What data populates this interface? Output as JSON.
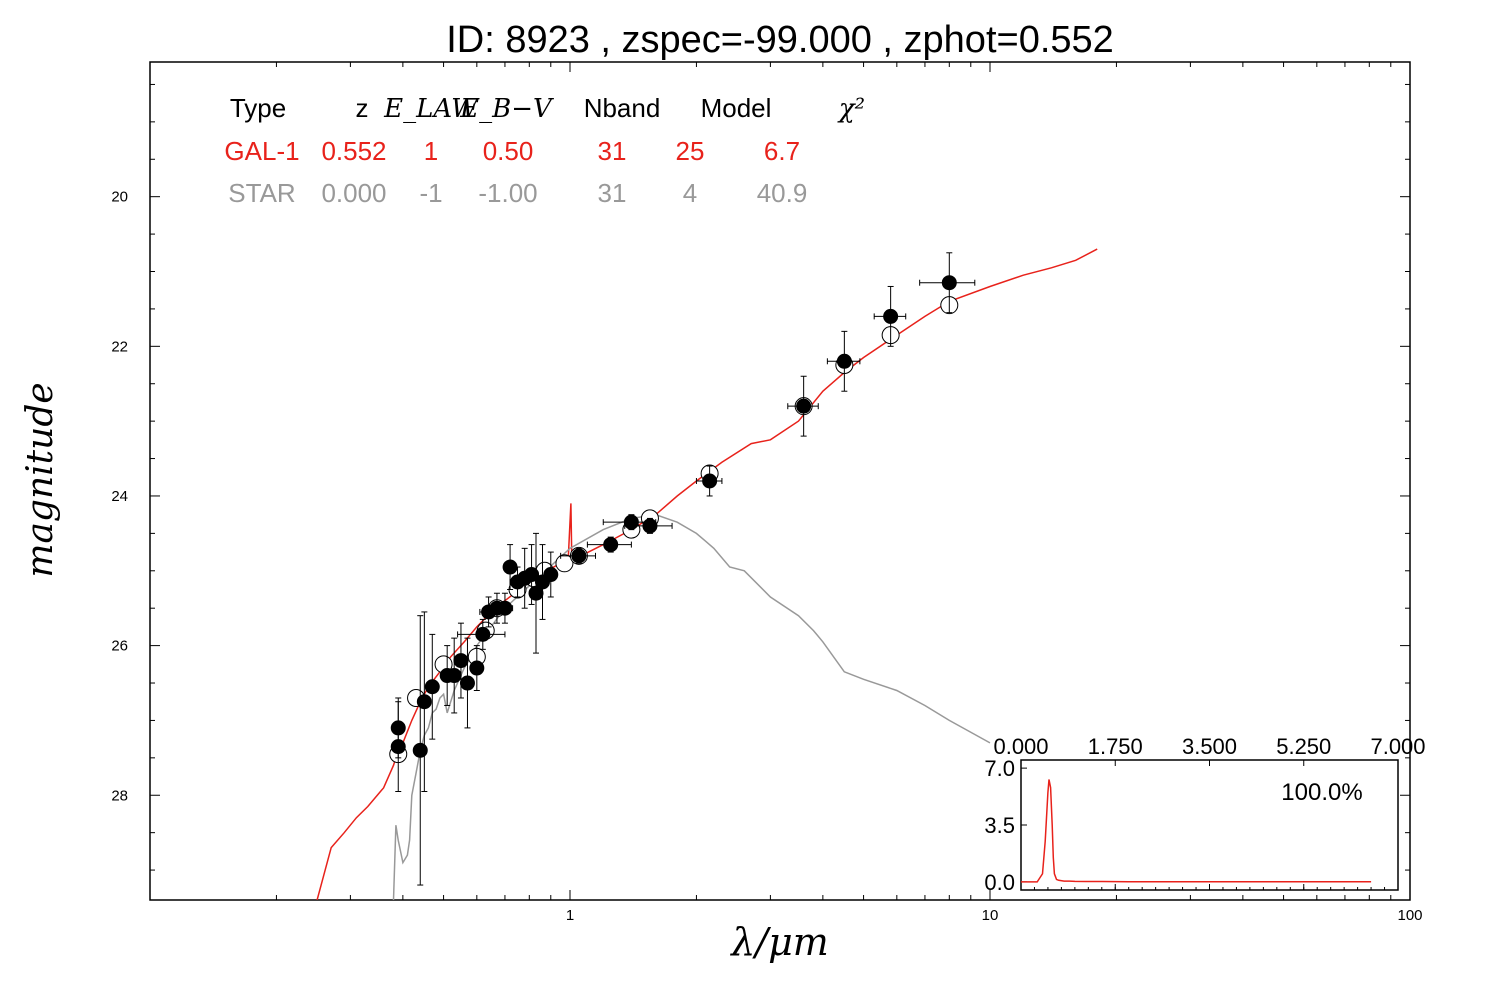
{
  "chart_data": {
    "type": "scatter",
    "title": "ID:  8923  , zspec=-99.000 , zphot=0.552",
    "xlabel": "λ/μm",
    "ylabel": "magnitude",
    "x_scale": "log",
    "xlim": [
      0.1,
      100
    ],
    "ylim": [
      29.4,
      18.2
    ],
    "x_ticks": [
      1,
      10,
      100
    ],
    "x_tick_labels": [
      "1",
      "10",
      "100"
    ],
    "y_ticks": [
      20,
      22,
      24,
      26,
      28
    ],
    "y_tick_labels": [
      "20",
      "22",
      "24",
      "26",
      "28"
    ],
    "legend_table": {
      "headers": [
        "Type",
        "z",
        "E_LAW",
        "E_B−V",
        "Nband",
        "Model",
        "χ²"
      ],
      "rows": [
        {
          "color": "#e8221b",
          "cells": [
            "GAL-1",
            "0.552",
            "1",
            "0.50",
            "31",
            "25",
            "6.7"
          ]
        },
        {
          "color": "#999999",
          "cells": [
            "STAR",
            "0.000",
            "-1",
            "-1.00",
            "31",
            "4",
            "40.9"
          ]
        }
      ]
    },
    "series": [
      {
        "name": "GAL-1",
        "kind": "line",
        "color": "#e8221b",
        "x": [
          0.25,
          0.27,
          0.29,
          0.31,
          0.33,
          0.36,
          0.38,
          0.39,
          0.4,
          0.42,
          0.44,
          0.46,
          0.49,
          0.52,
          0.56,
          0.6,
          0.65,
          0.7,
          0.75,
          0.8,
          0.88,
          0.95,
          0.99,
          1.005,
          1.01,
          1.02,
          1.08,
          1.2,
          1.4,
          1.6,
          1.8,
          2.0,
          2.3,
          2.7,
          3.0,
          3.5,
          4.0,
          4.5,
          5.0,
          6.0,
          7.0,
          8.0,
          10,
          12,
          14,
          16,
          18
        ],
        "y": [
          29.4,
          28.7,
          28.5,
          28.3,
          28.15,
          27.9,
          27.6,
          27.4,
          27.3,
          27.0,
          26.75,
          26.55,
          26.35,
          26.15,
          25.95,
          25.75,
          25.55,
          25.4,
          25.27,
          25.15,
          25.0,
          24.9,
          24.85,
          24.1,
          24.85,
          24.82,
          24.78,
          24.65,
          24.45,
          24.25,
          24.0,
          23.8,
          23.55,
          23.3,
          23.25,
          23.0,
          22.6,
          22.35,
          22.15,
          21.85,
          21.6,
          21.4,
          21.2,
          21.05,
          20.95,
          20.85,
          20.7
        ]
      },
      {
        "name": "STAR",
        "kind": "line",
        "color": "#999999",
        "x": [
          0.38,
          0.385,
          0.39,
          0.4,
          0.41,
          0.415,
          0.42,
          0.43,
          0.44,
          0.45,
          0.46,
          0.47,
          0.48,
          0.49,
          0.5,
          0.51,
          0.53,
          0.56,
          0.6,
          0.7,
          0.8,
          1.0,
          1.2,
          1.4,
          1.6,
          1.8,
          2.0,
          2.1,
          2.2,
          2.4,
          2.6,
          3.0,
          3.5,
          3.8,
          4.0,
          4.5,
          5.0,
          6.0,
          7.0,
          8.0,
          10
        ],
        "y": [
          29.4,
          28.4,
          28.6,
          28.9,
          28.8,
          28.6,
          28.0,
          27.7,
          27.4,
          27.2,
          27.1,
          26.9,
          26.85,
          26.7,
          26.65,
          26.9,
          26.6,
          26.3,
          26.0,
          25.5,
          25.2,
          24.7,
          24.45,
          24.3,
          24.25,
          24.35,
          24.5,
          24.6,
          24.7,
          24.95,
          25.0,
          25.35,
          25.6,
          25.8,
          25.95,
          26.35,
          26.45,
          26.6,
          26.8,
          27.0,
          27.3
        ]
      },
      {
        "name": "observed",
        "kind": "points",
        "marker": "filled",
        "points": [
          {
            "x": 0.39,
            "y": 27.1,
            "yerr": 0.4,
            "xerr": 0.0
          },
          {
            "x": 0.39,
            "y": 27.35,
            "yerr": 0.6,
            "xerr": 0.0
          },
          {
            "x": 0.44,
            "y": 27.4,
            "yerr": 1.8,
            "xerr": 0.0
          },
          {
            "x": 0.45,
            "y": 26.75,
            "yerr": 1.2,
            "xerr": 0.0
          },
          {
            "x": 0.47,
            "y": 26.55,
            "yerr": 0.7,
            "xerr": 0.0
          },
          {
            "x": 0.51,
            "y": 26.4,
            "yerr": 0.4,
            "xerr": 0.0
          },
          {
            "x": 0.53,
            "y": 26.4,
            "yerr": 0.5,
            "xerr": 0.0
          },
          {
            "x": 0.55,
            "y": 26.2,
            "yerr": 0.5,
            "xerr": 0.0
          },
          {
            "x": 0.57,
            "y": 26.5,
            "yerr": 0.6,
            "xerr": 0.0
          },
          {
            "x": 0.6,
            "y": 26.3,
            "yerr": 0.3,
            "xerr": 0.0
          },
          {
            "x": 0.62,
            "y": 25.85,
            "yerr": 0.2,
            "xerr": 0.08
          },
          {
            "x": 0.64,
            "y": 25.55,
            "yerr": 0.2,
            "xerr": 0.03
          },
          {
            "x": 0.67,
            "y": 25.5,
            "yerr": 0.2,
            "xerr": 0.03
          },
          {
            "x": 0.7,
            "y": 25.5,
            "yerr": 0.2,
            "xerr": 0.03
          },
          {
            "x": 0.72,
            "y": 24.95,
            "yerr": 0.3,
            "xerr": 0.0
          },
          {
            "x": 0.75,
            "y": 25.15,
            "yerr": 0.2,
            "xerr": 0.03
          },
          {
            "x": 0.78,
            "y": 25.1,
            "yerr": 0.4,
            "xerr": 0.03
          },
          {
            "x": 0.81,
            "y": 25.05,
            "yerr": 0.4,
            "xerr": 0.03
          },
          {
            "x": 0.83,
            "y": 25.3,
            "yerr": 0.8,
            "xerr": 0.0
          },
          {
            "x": 0.86,
            "y": 25.15,
            "yerr": 0.5,
            "xerr": 0.02
          },
          {
            "x": 0.9,
            "y": 25.05,
            "yerr": 0.3,
            "xerr": 0.03
          },
          {
            "x": 1.05,
            "y": 24.8,
            "yerr": 0.1,
            "xerr": 0.1
          },
          {
            "x": 1.25,
            "y": 24.65,
            "yerr": 0.1,
            "xerr": 0.15
          },
          {
            "x": 1.4,
            "y": 24.35,
            "yerr": 0.1,
            "xerr": 0.2
          },
          {
            "x": 1.55,
            "y": 24.4,
            "yerr": 0.1,
            "xerr": 0.2
          },
          {
            "x": 2.15,
            "y": 23.8,
            "yerr": 0.2,
            "xerr": 0.15
          },
          {
            "x": 3.6,
            "y": 22.8,
            "yerr": 0.4,
            "xerr": 0.3
          },
          {
            "x": 4.5,
            "y": 22.2,
            "yerr": 0.4,
            "xerr": 0.4
          },
          {
            "x": 5.8,
            "y": 21.6,
            "yerr": 0.4,
            "xerr": 0.5
          },
          {
            "x": 8.0,
            "y": 21.15,
            "yerr": 0.4,
            "xerr": 1.2
          }
        ]
      },
      {
        "name": "model",
        "kind": "points",
        "marker": "open",
        "points": [
          {
            "x": 0.39,
            "y": 27.45
          },
          {
            "x": 0.43,
            "y": 26.7
          },
          {
            "x": 0.5,
            "y": 26.25
          },
          {
            "x": 0.6,
            "y": 26.15
          },
          {
            "x": 0.63,
            "y": 25.8
          },
          {
            "x": 0.67,
            "y": 25.5
          },
          {
            "x": 0.75,
            "y": 25.25
          },
          {
            "x": 0.82,
            "y": 25.1
          },
          {
            "x": 0.87,
            "y": 25.0
          },
          {
            "x": 0.97,
            "y": 24.9
          },
          {
            "x": 1.05,
            "y": 24.8
          },
          {
            "x": 1.4,
            "y": 24.45
          },
          {
            "x": 1.55,
            "y": 24.3
          },
          {
            "x": 2.15,
            "y": 23.7
          },
          {
            "x": 3.6,
            "y": 22.8
          },
          {
            "x": 4.5,
            "y": 22.25
          },
          {
            "x": 5.8,
            "y": 21.85
          },
          {
            "x": 8.0,
            "y": 21.45
          }
        ]
      }
    ],
    "inset": {
      "type": "line",
      "label": "100.0%",
      "xlim": [
        0.0,
        7.0
      ],
      "ylim": [
        -0.5,
        7.5
      ],
      "x_ticks": [
        0.0,
        1.75,
        3.5,
        5.25,
        7.0
      ],
      "x_tick_labels": [
        "0.000",
        "1.750",
        "3.500",
        "5.250",
        "7.000"
      ],
      "y_ticks": [
        0.0,
        3.5,
        7.0
      ],
      "y_tick_labels": [
        "0.0",
        "3.5",
        "7.0"
      ],
      "color": "#e8221b",
      "x": [
        0.0,
        0.3,
        0.4,
        0.45,
        0.5,
        0.52,
        0.55,
        0.58,
        0.6,
        0.62,
        0.66,
        0.7,
        0.8,
        0.9,
        1.0,
        1.2,
        1.5,
        2.0,
        3.0,
        4.0,
        5.0,
        6.0,
        6.5
      ],
      "y": [
        0.0,
        0.0,
        0.5,
        2.5,
        5.5,
        6.3,
        5.8,
        3.5,
        1.5,
        0.5,
        0.15,
        0.1,
        0.05,
        0.05,
        0.03,
        0.02,
        0.02,
        0.01,
        0.01,
        0.01,
        0.01,
        0.01,
        0.01
      ]
    }
  }
}
